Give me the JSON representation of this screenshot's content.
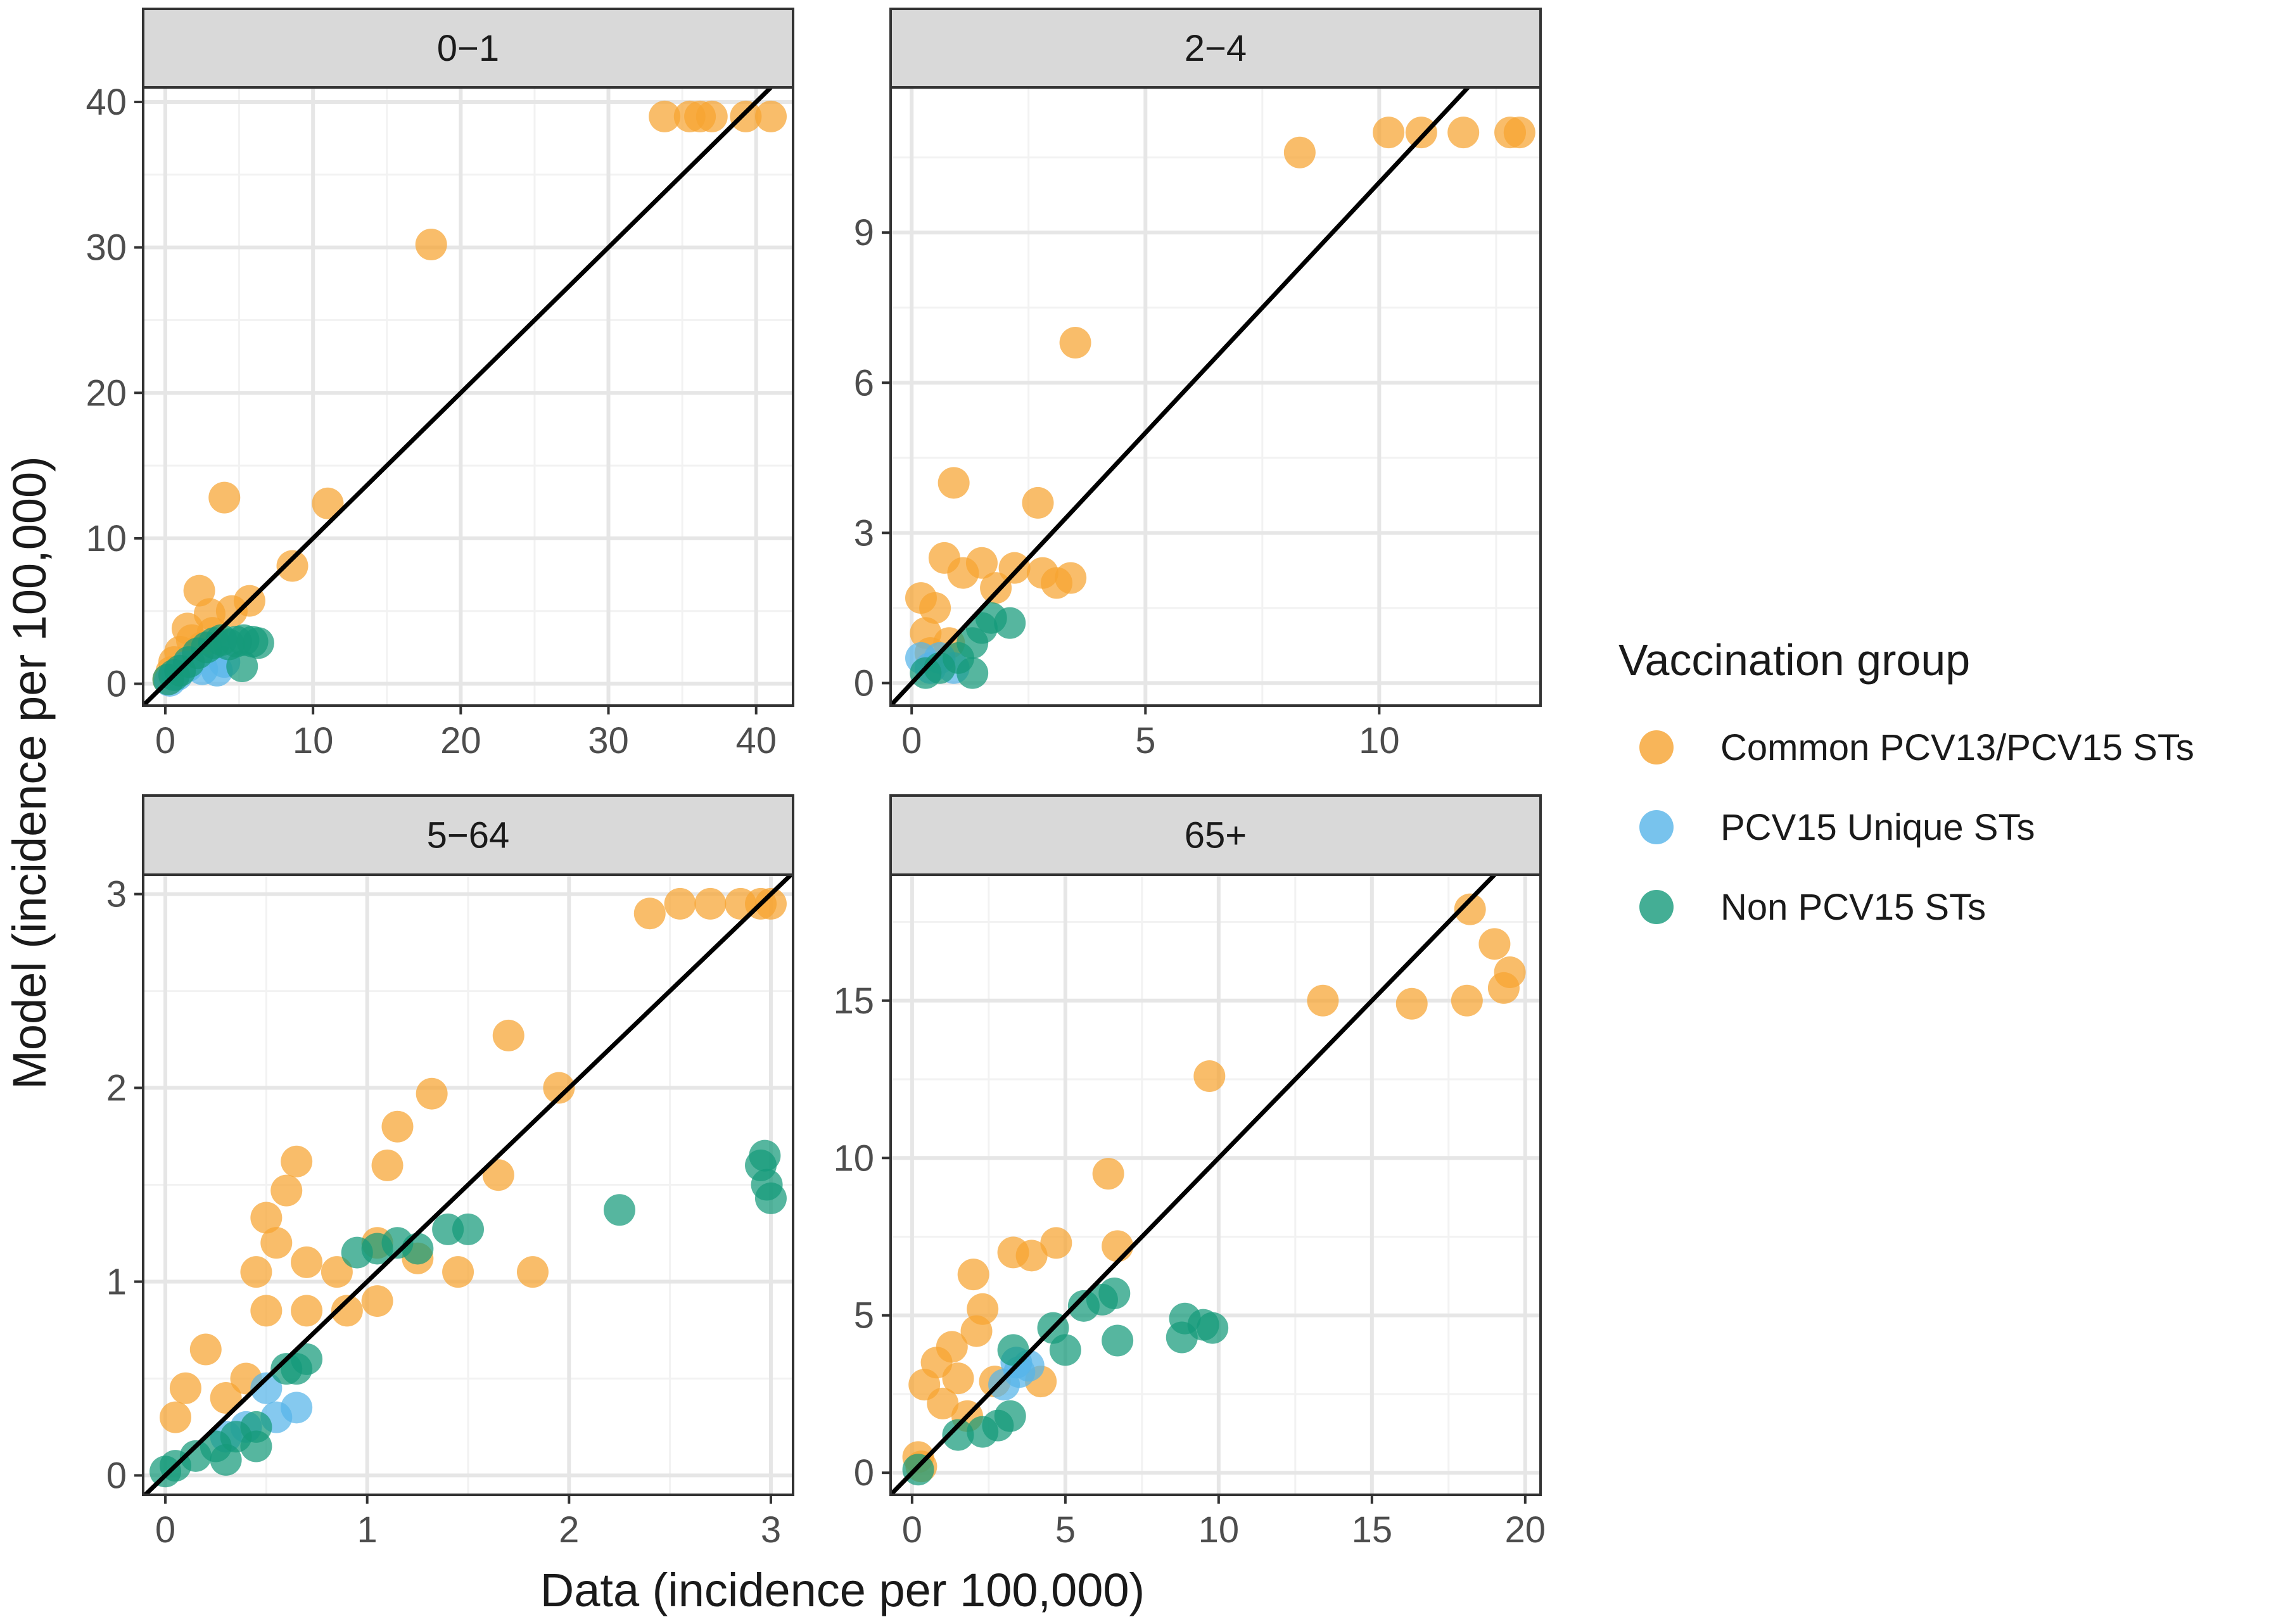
{
  "figure": {
    "xlabel": "Data (incidence per 100,000)",
    "ylabel": "Model (incidence per 100,000)"
  },
  "legend": {
    "title": "Vaccination group",
    "position": "right",
    "items": [
      {
        "label": "Common PCV13/PCV15 STs",
        "color": "#F6A330"
      },
      {
        "label": "PCV15 Unique STs",
        "color": "#56B4E9"
      },
      {
        "label": "Non PCV15 STs",
        "color": "#159A7A"
      }
    ]
  },
  "chart_data": [
    {
      "type": "scatter",
      "title": "0−1",
      "xlim": [
        -1.5,
        42.5
      ],
      "ylim": [
        -1.5,
        41
      ],
      "xticks": [
        "0",
        "10",
        "20",
        "30",
        "40"
      ],
      "xtick_values": [
        0,
        10,
        20,
        30,
        40
      ],
      "yticks": [
        "0",
        "10",
        "20",
        "30",
        "40"
      ],
      "ytick_values": [
        0,
        10,
        20,
        30,
        40
      ],
      "reference_line": "y = x",
      "grid": true,
      "series": [
        {
          "name": "Common PCV13/PCV15 STs",
          "points": [
            [
              33.8,
              39
            ],
            [
              35.5,
              39
            ],
            [
              36.2,
              39
            ],
            [
              37,
              39
            ],
            [
              39.3,
              39
            ],
            [
              41,
              39
            ],
            [
              18,
              30.2
            ],
            [
              4,
              12.8
            ],
            [
              11,
              12.4
            ],
            [
              8.6,
              8.1
            ],
            [
              5.7,
              5.7
            ],
            [
              2.3,
              6.4
            ],
            [
              1.5,
              3.8
            ],
            [
              3,
              4.8
            ],
            [
              4.5,
              5
            ],
            [
              0.2,
              0.3
            ],
            [
              0.6,
              1.5
            ],
            [
              1,
              2.2
            ],
            [
              1.8,
              3
            ],
            [
              2.5,
              2.5
            ],
            [
              0.4,
              0.8
            ],
            [
              3.2,
              3.5
            ]
          ]
        },
        {
          "name": "PCV15 Unique STs",
          "points": [
            [
              0.3,
              0.2
            ],
            [
              0.8,
              0.6
            ],
            [
              1.5,
              1.2
            ],
            [
              2.5,
              1
            ],
            [
              3.5,
              0.9
            ],
            [
              4,
              1.5
            ]
          ]
        },
        {
          "name": "Non PCV15 STs",
          "points": [
            [
              0.2,
              0.3
            ],
            [
              0.6,
              0.6
            ],
            [
              1,
              0.9
            ],
            [
              1.6,
              1.5
            ],
            [
              2.2,
              2.1
            ],
            [
              2.8,
              2.5
            ],
            [
              3.3,
              2.8
            ],
            [
              3.8,
              3
            ],
            [
              4.3,
              2.7
            ],
            [
              4.8,
              2.9
            ],
            [
              5.3,
              3
            ],
            [
              5.9,
              2.9
            ],
            [
              6.3,
              2.8
            ],
            [
              5.2,
              1.2
            ]
          ]
        }
      ]
    },
    {
      "type": "scatter",
      "title": "2−4",
      "xlim": [
        -0.45,
        13.45
      ],
      "ylim": [
        -0.45,
        11.9
      ],
      "xticks": [
        "0",
        "5",
        "10"
      ],
      "xtick_values": [
        0,
        5,
        10
      ],
      "yticks": [
        "0",
        "3",
        "6",
        "9"
      ],
      "ytick_values": [
        0,
        3,
        6,
        9
      ],
      "reference_line": "y = x",
      "grid": true,
      "series": [
        {
          "name": "Common PCV13/PCV15 STs",
          "points": [
            [
              10.2,
              11
            ],
            [
              10.9,
              11
            ],
            [
              12.8,
              11
            ],
            [
              13,
              11
            ],
            [
              8.3,
              10.6
            ],
            [
              11.8,
              11
            ],
            [
              3.5,
              6.8
            ],
            [
              0.9,
              4
            ],
            [
              2.7,
              3.6
            ],
            [
              0.7,
              2.5
            ],
            [
              1.5,
              2.4
            ],
            [
              2.2,
              2.3
            ],
            [
              2.8,
              2.2
            ],
            [
              3.4,
              2.1
            ],
            [
              3.1,
              2
            ],
            [
              1.1,
              2.2
            ],
            [
              0.2,
              1.7
            ],
            [
              0.5,
              1.5
            ],
            [
              0.3,
              1
            ],
            [
              0.8,
              0.8
            ],
            [
              1.8,
              1.9
            ],
            [
              0.4,
              0.6
            ]
          ]
        },
        {
          "name": "PCV15 Unique STs",
          "points": [
            [
              0.2,
              0.5
            ],
            [
              0.4,
              0.3
            ],
            [
              0.6,
              0.5
            ],
            [
              0.9,
              0.3
            ]
          ]
        },
        {
          "name": "Non PCV15 STs",
          "points": [
            [
              0.3,
              0.2
            ],
            [
              0.6,
              0.3
            ],
            [
              1,
              0.5
            ],
            [
              1.3,
              0.8
            ],
            [
              1.5,
              1.1
            ],
            [
              1.7,
              1.3
            ],
            [
              2.1,
              1.2
            ],
            [
              1.3,
              0.2
            ]
          ]
        }
      ]
    },
    {
      "type": "scatter",
      "title": "5−64",
      "xlim": [
        -0.11,
        3.11
      ],
      "ylim": [
        -0.1,
        3.1
      ],
      "xticks": [
        "0",
        "1",
        "2",
        "3"
      ],
      "xtick_values": [
        0,
        1,
        2,
        3
      ],
      "yticks": [
        "0",
        "1",
        "2",
        "3"
      ],
      "ytick_values": [
        0,
        1,
        2,
        3
      ],
      "reference_line": "y = x",
      "grid": true,
      "series": [
        {
          "name": "Common PCV13/PCV15 STs",
          "points": [
            [
              2.4,
              2.9
            ],
            [
              2.55,
              2.95
            ],
            [
              2.7,
              2.95
            ],
            [
              2.85,
              2.95
            ],
            [
              2.95,
              2.95
            ],
            [
              3,
              2.95
            ],
            [
              1.7,
              2.27
            ],
            [
              1.95,
              2
            ],
            [
              1.32,
              1.97
            ],
            [
              1.15,
              1.8
            ],
            [
              1.1,
              1.6
            ],
            [
              1.65,
              1.55
            ],
            [
              0.65,
              1.62
            ],
            [
              0.6,
              1.47
            ],
            [
              0.5,
              1.33
            ],
            [
              0.55,
              1.2
            ],
            [
              0.45,
              1.05
            ],
            [
              0.7,
              1.1
            ],
            [
              0.85,
              1.05
            ],
            [
              1.05,
              1.2
            ],
            [
              1.25,
              1.12
            ],
            [
              1.45,
              1.05
            ],
            [
              1.82,
              1.05
            ],
            [
              0.5,
              0.85
            ],
            [
              0.7,
              0.85
            ],
            [
              0.9,
              0.85
            ],
            [
              1.05,
              0.9
            ],
            [
              0.2,
              0.65
            ],
            [
              0.1,
              0.45
            ],
            [
              0.05,
              0.3
            ],
            [
              0.3,
              0.4
            ],
            [
              0.4,
              0.5
            ]
          ]
        },
        {
          "name": "PCV15 Unique STs",
          "points": [
            [
              0.5,
              0.45
            ],
            [
              0.65,
              0.35
            ],
            [
              0.55,
              0.3
            ],
            [
              0.4,
              0.25
            ],
            [
              0.3,
              0.2
            ]
          ]
        },
        {
          "name": "Non PCV15 STs",
          "points": [
            [
              0,
              0.02
            ],
            [
              0.05,
              0.05
            ],
            [
              0.15,
              0.1
            ],
            [
              0.25,
              0.15
            ],
            [
              0.35,
              0.2
            ],
            [
              0.45,
              0.25
            ],
            [
              0.6,
              0.55
            ],
            [
              0.7,
              0.6
            ],
            [
              0.65,
              0.55
            ],
            [
              0.95,
              1.15
            ],
            [
              1.05,
              1.17
            ],
            [
              1.15,
              1.2
            ],
            [
              1.25,
              1.17
            ],
            [
              1.4,
              1.27
            ],
            [
              1.5,
              1.27
            ],
            [
              2.25,
              1.37
            ],
            [
              2.95,
              1.6
            ],
            [
              2.98,
              1.5
            ],
            [
              3,
              1.43
            ],
            [
              2.97,
              1.65
            ],
            [
              0.45,
              0.15
            ],
            [
              0.3,
              0.08
            ]
          ]
        }
      ]
    },
    {
      "type": "scatter",
      "title": "65+",
      "xlim": [
        -0.7,
        20.5
      ],
      "ylim": [
        -0.7,
        19
      ],
      "xticks": [
        "0",
        "5",
        "10",
        "15",
        "20"
      ],
      "xtick_values": [
        0,
        5,
        10,
        15,
        20
      ],
      "yticks": [
        "0",
        "5",
        "10",
        "15"
      ],
      "ytick_values": [
        0,
        5,
        10,
        15
      ],
      "reference_line": "y = x",
      "grid": true,
      "series": [
        {
          "name": "Common PCV13/PCV15 STs",
          "points": [
            [
              18.2,
              17.9
            ],
            [
              19,
              16.8
            ],
            [
              19.5,
              15.9
            ],
            [
              19.3,
              15.4
            ],
            [
              18.1,
              15
            ],
            [
              16.3,
              14.9
            ],
            [
              13.4,
              15
            ],
            [
              9.7,
              12.6
            ],
            [
              6.4,
              9.5
            ],
            [
              6.7,
              7.2
            ],
            [
              4.7,
              7.3
            ],
            [
              3.3,
              7
            ],
            [
              3.9,
              6.9
            ],
            [
              2,
              6.3
            ],
            [
              2.3,
              5.2
            ],
            [
              2.1,
              4.5
            ],
            [
              1.3,
              4
            ],
            [
              0.8,
              3.5
            ],
            [
              0.4,
              2.8
            ],
            [
              1.5,
              3
            ],
            [
              2.7,
              2.9
            ],
            [
              4.2,
              2.9
            ],
            [
              0.2,
              0.5
            ],
            [
              0.3,
              0.2
            ],
            [
              1,
              2.2
            ],
            [
              1.8,
              1.8
            ]
          ]
        },
        {
          "name": "PCV15 Unique STs",
          "points": [
            [
              3.4,
              3.5
            ],
            [
              3.8,
              3.4
            ],
            [
              3.5,
              3.2
            ],
            [
              3,
              2.8
            ]
          ]
        },
        {
          "name": "Non PCV15 STs",
          "points": [
            [
              0.2,
              0.1
            ],
            [
              1.5,
              1.2
            ],
            [
              2.3,
              1.3
            ],
            [
              2.8,
              1.5
            ],
            [
              3.2,
              1.8
            ],
            [
              3.3,
              3.9
            ],
            [
              4.6,
              4.6
            ],
            [
              5,
              3.9
            ],
            [
              5.6,
              5.3
            ],
            [
              6.2,
              5.5
            ],
            [
              6.6,
              5.7
            ],
            [
              6.7,
              4.2
            ],
            [
              8.8,
              4.3
            ],
            [
              8.9,
              4.9
            ],
            [
              9.5,
              4.7
            ],
            [
              9.8,
              4.6
            ]
          ]
        }
      ]
    }
  ]
}
